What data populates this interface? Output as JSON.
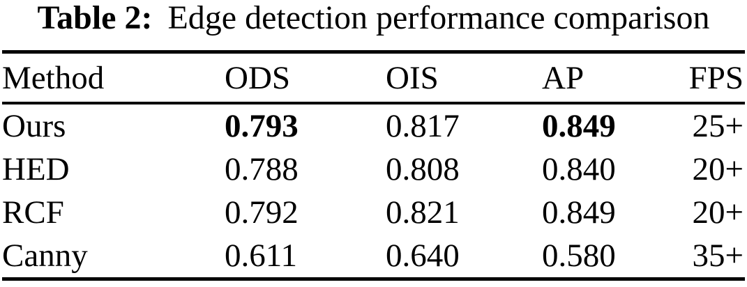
{
  "caption": {
    "label": "Table 2:",
    "text": "Edge detection performance comparison"
  },
  "table": {
    "columns": [
      "Method",
      "ODS",
      "OIS",
      "AP",
      "FPS"
    ],
    "rows": [
      {
        "cells": [
          {
            "text": "Ours",
            "bold": false
          },
          {
            "text": "0.793",
            "bold": true
          },
          {
            "text": "0.817",
            "bold": false
          },
          {
            "text": "0.849",
            "bold": true
          },
          {
            "text": "25+",
            "bold": false
          }
        ]
      },
      {
        "cells": [
          {
            "text": "HED",
            "bold": false
          },
          {
            "text": "0.788",
            "bold": false
          },
          {
            "text": "0.808",
            "bold": false
          },
          {
            "text": "0.840",
            "bold": false
          },
          {
            "text": "20+",
            "bold": false
          }
        ]
      },
      {
        "cells": [
          {
            "text": "RCF",
            "bold": false
          },
          {
            "text": "0.792",
            "bold": false
          },
          {
            "text": "0.821",
            "bold": false
          },
          {
            "text": "0.849",
            "bold": false
          },
          {
            "text": "20+",
            "bold": false
          }
        ]
      },
      {
        "cells": [
          {
            "text": "Canny",
            "bold": false
          },
          {
            "text": "0.611",
            "bold": false
          },
          {
            "text": "0.640",
            "bold": false
          },
          {
            "text": "0.580",
            "bold": false
          },
          {
            "text": "35+",
            "bold": false
          }
        ]
      }
    ]
  },
  "colors": {
    "background": "#ffffff",
    "text": "#000000",
    "rule": "#000000"
  }
}
